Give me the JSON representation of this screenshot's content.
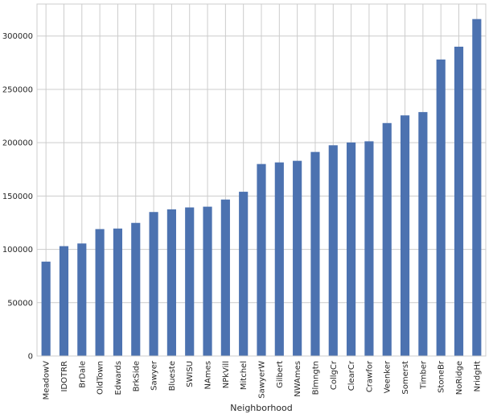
{
  "chart_data": {
    "type": "bar",
    "title": "",
    "xlabel": "Neighborhood",
    "ylabel": "",
    "categories": [
      "MeadowV",
      "IDOTRR",
      "BrDale",
      "OldTown",
      "Edwards",
      "BrkSide",
      "Sawyer",
      "Blueste",
      "SWISU",
      "NAmes",
      "NPkVill",
      "Mitchel",
      "SawyerW",
      "Gilbert",
      "NWAmes",
      "Blmngtn",
      "CollgCr",
      "ClearCr",
      "Crawfor",
      "Veenker",
      "Somerst",
      "Timber",
      "StoneBr",
      "NoRidge",
      "NridgHt"
    ],
    "values": [
      88500,
      103000,
      105500,
      119000,
      119500,
      124800,
      135000,
      137500,
      139300,
      140000,
      146700,
      154000,
      180000,
      181500,
      183000,
      191300,
      197600,
      200200,
      201300,
      218400,
      225600,
      228700,
      278000,
      290000,
      315900
    ],
    "ylim": [
      0,
      330000
    ],
    "yticks": [
      0,
      50000,
      100000,
      150000,
      200000,
      250000,
      300000
    ],
    "ytick_labels": [
      "0",
      "50000",
      "100000",
      "150000",
      "200000",
      "250000",
      "300000"
    ],
    "grid": true,
    "legend": "none",
    "colors": {
      "bar": "#4c72b0",
      "grid": "#cccccc",
      "frame": "#cccccc",
      "text": "#262626"
    }
  }
}
